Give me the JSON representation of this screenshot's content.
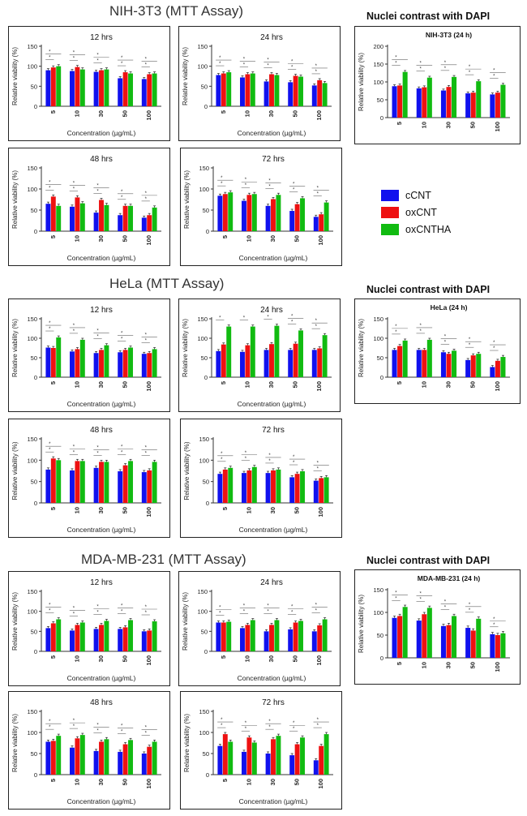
{
  "colors": {
    "cCNT": "#1111ee",
    "oxCNT": "#ee1111",
    "oxCNTHA": "#11bb11",
    "axis": "#333333",
    "sig": "#555555"
  },
  "sections": [
    {
      "title": "NIH-3T3 (MTT Assay)",
      "dapi_title": "Nuclei contrast with DAPI"
    },
    {
      "title": "HeLa (MTT Assay)",
      "dapi_title": "Nuclei contrast with DAPI"
    },
    {
      "title": "MDA-MB-231 (MTT Assay)",
      "dapi_title": "Nuclei contrast with DAPI"
    }
  ],
  "legend": [
    {
      "label": "cCNT",
      "color": "#1111ee"
    },
    {
      "label": "oxCNT",
      "color": "#ee1111"
    },
    {
      "label": "oxCNTHA",
      "color": "#11bb11"
    }
  ],
  "chart_data": [
    {
      "id": "nih-12",
      "type": "bar",
      "title": "12 hrs",
      "ylabel": "Relative viability (%)",
      "xlabel": "Concentration (µg/mL)",
      "categories": [
        "5",
        "10",
        "30",
        "50",
        "100"
      ],
      "ylim": [
        0,
        150
      ],
      "yticks": [
        0,
        50,
        100,
        150
      ],
      "series": [
        {
          "name": "cCNT",
          "values": [
            90,
            88,
            86,
            70,
            68
          ]
        },
        {
          "name": "oxCNT",
          "values": [
            97,
            98,
            90,
            85,
            80
          ]
        },
        {
          "name": "oxCNTHA",
          "values": [
            100,
            92,
            92,
            82,
            82
          ]
        }
      ]
    },
    {
      "id": "nih-24",
      "type": "bar",
      "title": "24 hrs",
      "ylabel": "Relative viability (%)",
      "xlabel": "Concentration (µg/mL)",
      "categories": [
        "5",
        "10",
        "30",
        "50",
        "100"
      ],
      "ylim": [
        0,
        150
      ],
      "yticks": [
        0,
        50,
        100,
        150
      ],
      "series": [
        {
          "name": "cCNT",
          "values": [
            78,
            72,
            62,
            60,
            52
          ]
        },
        {
          "name": "oxCNT",
          "values": [
            82,
            80,
            80,
            76,
            65
          ]
        },
        {
          "name": "oxCNTHA",
          "values": [
            85,
            82,
            78,
            74,
            58
          ]
        }
      ]
    },
    {
      "id": "nih-dapi",
      "type": "bar",
      "title": "NIH-3T3 (24 h)",
      "ylabel": "Relative viability (%)",
      "xlabel": "",
      "categories": [
        "5",
        "10",
        "30",
        "50",
        "100"
      ],
      "ylim": [
        0,
        200
      ],
      "yticks": [
        0,
        50,
        100,
        150,
        200
      ],
      "series": [
        {
          "name": "cCNT",
          "values": [
            88,
            82,
            76,
            68,
            65
          ]
        },
        {
          "name": "oxCNT",
          "values": [
            90,
            85,
            86,
            70,
            70
          ]
        },
        {
          "name": "oxCNTHA",
          "values": [
            128,
            112,
            114,
            102,
            92
          ]
        }
      ]
    },
    {
      "id": "nih-48",
      "type": "bar",
      "title": "48 hrs",
      "ylabel": "Relative viability (%)",
      "xlabel": "Concentration (µg/mL)",
      "categories": [
        "5",
        "10",
        "30",
        "50",
        "100"
      ],
      "ylim": [
        0,
        150
      ],
      "yticks": [
        0,
        50,
        100,
        150
      ],
      "series": [
        {
          "name": "cCNT",
          "values": [
            65,
            58,
            44,
            38,
            32
          ]
        },
        {
          "name": "oxCNT",
          "values": [
            82,
            80,
            74,
            60,
            38
          ]
        },
        {
          "name": "oxCNTHA",
          "values": [
            60,
            66,
            62,
            60,
            56
          ]
        }
      ]
    },
    {
      "id": "nih-72",
      "type": "bar",
      "title": "72 hrs",
      "ylabel": "Relative viability (%)",
      "xlabel": "Concentration (µg/mL)",
      "categories": [
        "5",
        "10",
        "30",
        "50",
        "100"
      ],
      "ylim": [
        0,
        150
      ],
      "yticks": [
        0,
        50,
        100,
        150
      ],
      "series": [
        {
          "name": "cCNT",
          "values": [
            84,
            72,
            60,
            48,
            34
          ]
        },
        {
          "name": "oxCNT",
          "values": [
            88,
            86,
            76,
            64,
            40
          ]
        },
        {
          "name": "oxCNTHA",
          "values": [
            92,
            88,
            86,
            78,
            68
          ]
        }
      ]
    },
    {
      "id": "hela-12",
      "type": "bar",
      "title": "12 hrs",
      "ylabel": "Relative viability (%)",
      "xlabel": "Concentration (µg/mL)",
      "categories": [
        "5",
        "10",
        "30",
        "50",
        "100"
      ],
      "ylim": [
        0,
        150
      ],
      "yticks": [
        0,
        50,
        100,
        150
      ],
      "series": [
        {
          "name": "cCNT",
          "values": [
            76,
            66,
            62,
            64,
            60
          ]
        },
        {
          "name": "oxCNT",
          "values": [
            75,
            72,
            70,
            70,
            62
          ]
        },
        {
          "name": "oxCNTHA",
          "values": [
            102,
            96,
            82,
            76,
            72
          ]
        }
      ]
    },
    {
      "id": "hela-24",
      "type": "bar",
      "title": "24 hrs",
      "ylabel": "Relative viability (%)",
      "xlabel": "Concentration (µg/mL)",
      "categories": [
        "5",
        "10",
        "30",
        "50",
        "100"
      ],
      "ylim": [
        0,
        150
      ],
      "yticks": [
        0,
        50,
        100,
        150
      ],
      "series": [
        {
          "name": "cCNT",
          "values": [
            67,
            65,
            70,
            70,
            70
          ]
        },
        {
          "name": "oxCNT",
          "values": [
            84,
            82,
            85,
            86,
            74
          ]
        },
        {
          "name": "oxCNTHA",
          "values": [
            130,
            130,
            132,
            120,
            108
          ]
        }
      ]
    },
    {
      "id": "hela-dapi",
      "type": "bar",
      "title": "HeLa (24 h)",
      "ylabel": "Relative viability (%)",
      "xlabel": "",
      "categories": [
        "5",
        "10",
        "30",
        "50",
        "100"
      ],
      "ylim": [
        0,
        150
      ],
      "yticks": [
        0,
        50,
        100,
        150
      ],
      "series": [
        {
          "name": "cCNT",
          "values": [
            70,
            70,
            64,
            44,
            26
          ]
        },
        {
          "name": "oxCNT",
          "values": [
            80,
            70,
            60,
            56,
            42
          ]
        },
        {
          "name": "oxCNTHA",
          "values": [
            94,
            96,
            68,
            60,
            52
          ]
        }
      ]
    },
    {
      "id": "hela-48",
      "type": "bar",
      "title": "48 hrs",
      "ylabel": "Relative viability (%)",
      "xlabel": "Concentration (µg/mL)",
      "categories": [
        "5",
        "10",
        "30",
        "50",
        "100"
      ],
      "ylim": [
        0,
        150
      ],
      "yticks": [
        0,
        50,
        100,
        150
      ],
      "series": [
        {
          "name": "cCNT",
          "values": [
            78,
            76,
            82,
            74,
            72
          ]
        },
        {
          "name": "oxCNT",
          "values": [
            104,
            98,
            96,
            88,
            76
          ]
        },
        {
          "name": "oxCNTHA",
          "values": [
            100,
            98,
            96,
            98,
            96
          ]
        }
      ]
    },
    {
      "id": "hela-72",
      "type": "bar",
      "title": "72 hrs",
      "ylabel": "Relative viability (%)",
      "xlabel": "Concentration (µg/mL)",
      "categories": [
        "5",
        "10",
        "30",
        "50",
        "100"
      ],
      "ylim": [
        0,
        150
      ],
      "yticks": [
        0,
        50,
        100,
        150
      ],
      "series": [
        {
          "name": "cCNT",
          "values": [
            68,
            70,
            70,
            60,
            52
          ]
        },
        {
          "name": "oxCNT",
          "values": [
            78,
            76,
            76,
            68,
            58
          ]
        },
        {
          "name": "oxCNTHA",
          "values": [
            82,
            84,
            78,
            74,
            60
          ]
        }
      ]
    },
    {
      "id": "mda-12",
      "type": "bar",
      "title": "12 hrs",
      "ylabel": "Relative viability (%)",
      "xlabel": "Concentration (µg/mL)",
      "categories": [
        "5",
        "10",
        "30",
        "50",
        "100"
      ],
      "ylim": [
        0,
        150
      ],
      "yticks": [
        0,
        50,
        100,
        150
      ],
      "series": [
        {
          "name": "cCNT",
          "values": [
            58,
            52,
            56,
            56,
            50
          ]
        },
        {
          "name": "oxCNT",
          "values": [
            70,
            66,
            66,
            60,
            52
          ]
        },
        {
          "name": "oxCNTHA",
          "values": [
            80,
            72,
            76,
            78,
            75
          ]
        }
      ]
    },
    {
      "id": "mda-24",
      "type": "bar",
      "title": "24 hrs",
      "ylabel": "Relative viability (%)",
      "xlabel": "Concentration (µg/mL)",
      "categories": [
        "5",
        "10",
        "30",
        "50",
        "100"
      ],
      "ylim": [
        0,
        150
      ],
      "yticks": [
        0,
        50,
        100,
        150
      ],
      "series": [
        {
          "name": "cCNT",
          "values": [
            72,
            58,
            50,
            55,
            50
          ]
        },
        {
          "name": "oxCNT",
          "values": [
            72,
            66,
            66,
            72,
            65
          ]
        },
        {
          "name": "oxCNTHA",
          "values": [
            74,
            78,
            78,
            76,
            80
          ]
        }
      ]
    },
    {
      "id": "mda-dapi",
      "type": "bar",
      "title": "MDA-MB-231 (24 h)",
      "ylabel": "Relative viability (%)",
      "xlabel": "",
      "categories": [
        "5",
        "10",
        "30",
        "50",
        "100"
      ],
      "ylim": [
        0,
        150
      ],
      "yticks": [
        0,
        50,
        100,
        150
      ],
      "series": [
        {
          "name": "cCNT",
          "values": [
            88,
            82,
            70,
            66,
            52
          ]
        },
        {
          "name": "oxCNT",
          "values": [
            92,
            96,
            72,
            60,
            50
          ]
        },
        {
          "name": "oxCNTHA",
          "values": [
            112,
            110,
            92,
            86,
            54
          ]
        }
      ]
    },
    {
      "id": "mda-48",
      "type": "bar",
      "title": "48 hrs",
      "ylabel": "Relative viability (%)",
      "xlabel": "Concentration (µg/mL)",
      "categories": [
        "5",
        "10",
        "30",
        "50",
        "100"
      ],
      "ylim": [
        0,
        150
      ],
      "yticks": [
        0,
        50,
        100,
        150
      ],
      "series": [
        {
          "name": "cCNT",
          "values": [
            78,
            64,
            56,
            54,
            50
          ]
        },
        {
          "name": "oxCNT",
          "values": [
            80,
            86,
            78,
            72,
            66
          ]
        },
        {
          "name": "oxCNTHA",
          "values": [
            92,
            94,
            84,
            82,
            78
          ]
        }
      ]
    },
    {
      "id": "mda-72",
      "type": "bar",
      "title": "72 hrs",
      "ylabel": "Relative viability (%)",
      "xlabel": "Concentration (µg/mL)",
      "categories": [
        "5",
        "10",
        "30",
        "50",
        "100"
      ],
      "ylim": [
        0,
        150
      ],
      "yticks": [
        0,
        50,
        100,
        150
      ],
      "series": [
        {
          "name": "cCNT",
          "values": [
            68,
            54,
            50,
            46,
            34
          ]
        },
        {
          "name": "oxCNT",
          "values": [
            96,
            88,
            84,
            72,
            68
          ]
        },
        {
          "name": "oxCNTHA",
          "values": [
            78,
            76,
            92,
            88,
            96
          ]
        }
      ]
    }
  ]
}
